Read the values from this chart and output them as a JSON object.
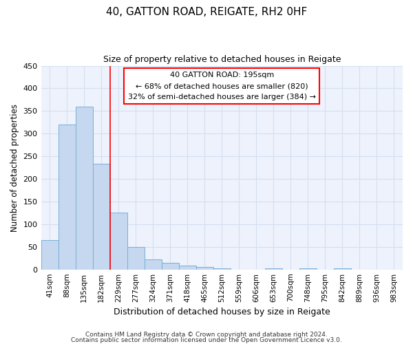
{
  "title": "40, GATTON ROAD, REIGATE, RH2 0HF",
  "subtitle": "Size of property relative to detached houses in Reigate",
  "xlabel": "Distribution of detached houses by size in Reigate",
  "ylabel": "Number of detached properties",
  "bar_labels": [
    "41sqm",
    "88sqm",
    "135sqm",
    "182sqm",
    "229sqm",
    "277sqm",
    "324sqm",
    "371sqm",
    "418sqm",
    "465sqm",
    "512sqm",
    "559sqm",
    "606sqm",
    "653sqm",
    "700sqm",
    "748sqm",
    "795sqm",
    "842sqm",
    "889sqm",
    "936sqm",
    "983sqm"
  ],
  "bar_values": [
    65,
    320,
    360,
    233,
    125,
    50,
    23,
    14,
    8,
    5,
    3,
    0,
    0,
    3,
    0,
    3,
    0,
    3,
    0,
    0,
    0
  ],
  "bar_color": "#c5d8f0",
  "bar_edge_color": "#7aaed6",
  "grid_color": "#d4dff0",
  "background_color": "#eef2fc",
  "red_line_x": 3.5,
  "annotation_text": "40 GATTON ROAD: 195sqm\n← 68% of detached houses are smaller (820)\n32% of semi-detached houses are larger (384) →",
  "annotation_box_color": "white",
  "annotation_box_edge": "red",
  "ylim": [
    0,
    450
  ],
  "yticks": [
    0,
    50,
    100,
    150,
    200,
    250,
    300,
    350,
    400,
    450
  ],
  "footer_line1": "Contains HM Land Registry data © Crown copyright and database right 2024.",
  "footer_line2": "Contains public sector information licensed under the Open Government Licence v3.0."
}
